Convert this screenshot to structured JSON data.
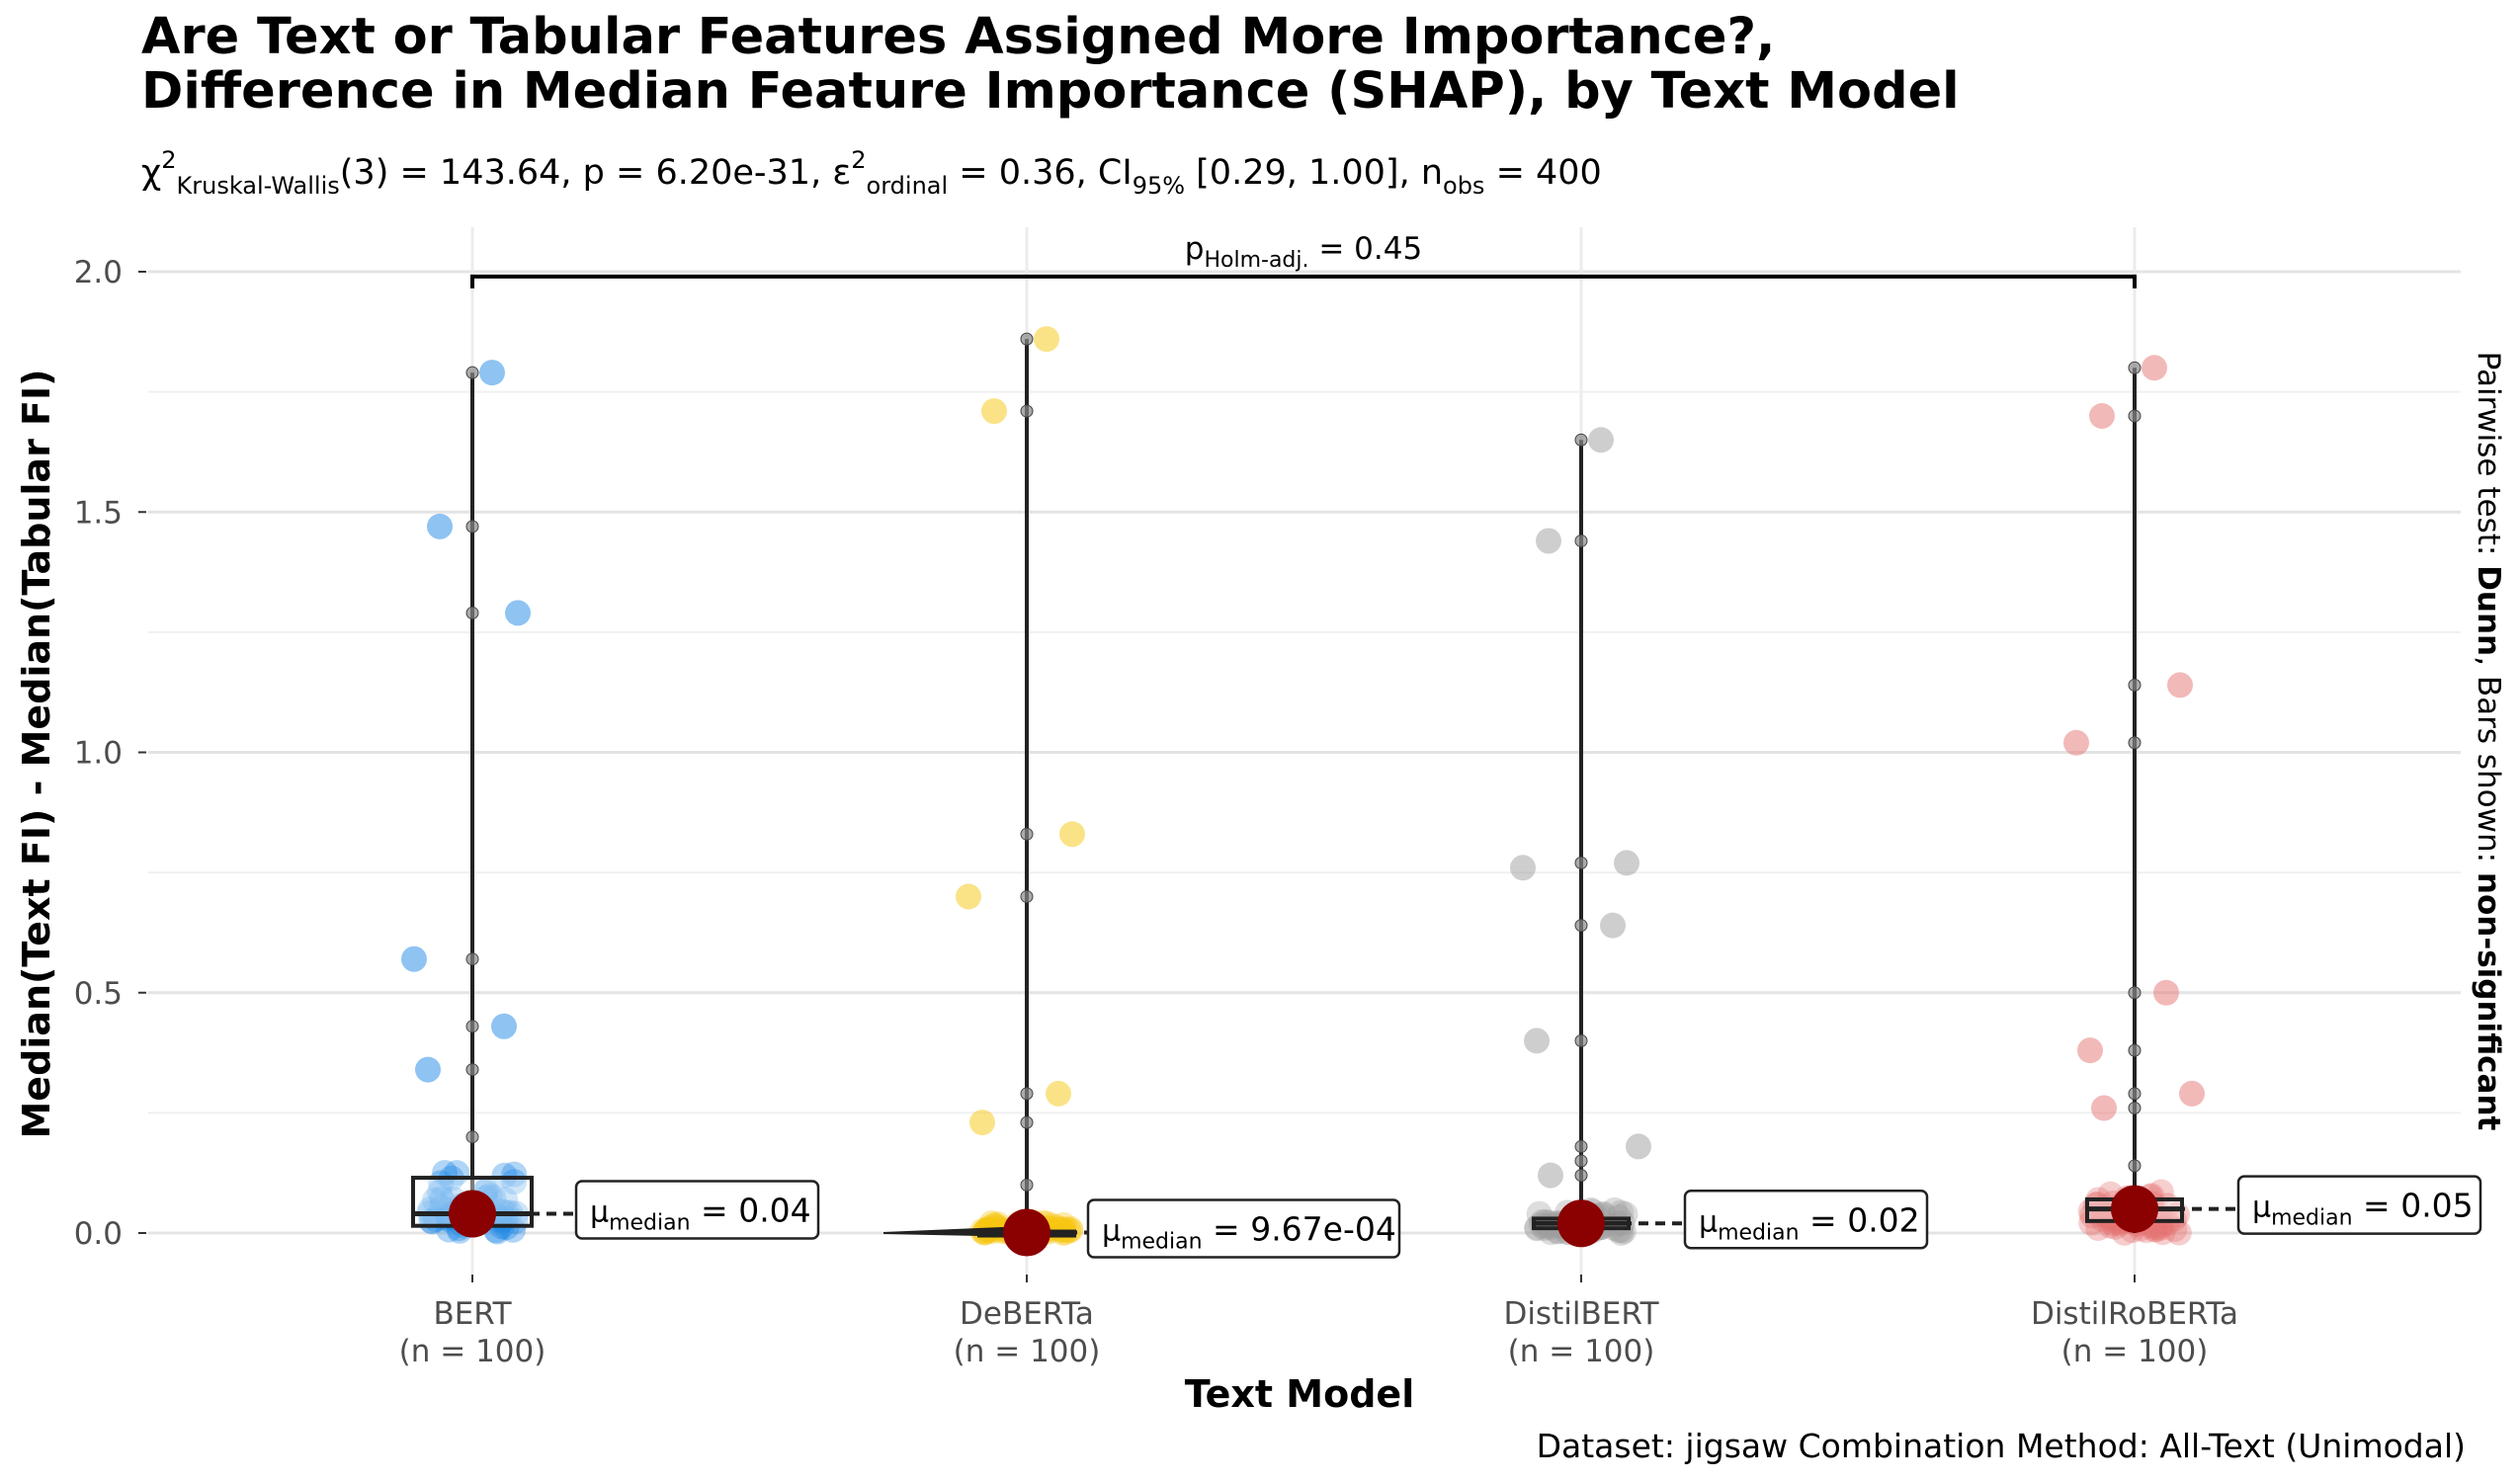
{
  "chart_data": {
    "type": "scatter",
    "title": "Are Text or Tabular Features Assigned More Importance?,",
    "subtitle": "Difference in Median Feature Importance (SHAP), by Text Model",
    "stats": {
      "chi_symbol": "χ",
      "chi_sup": "2",
      "chi_sub": "Kruskal-Wallis",
      "chi_value": "(3) = 143.64, p = 6.20e-31, ",
      "eps_symbol": "ε",
      "eps_sup": "2",
      "eps_sub": "ordinal",
      "eps_value": " = 0.36, CI",
      "ci_sub": "95%",
      "ci_value": " [0.29, 1.00], n",
      "n_sub": "obs",
      "n_value": " = 400"
    },
    "xlabel": "Text Model",
    "ylabel": "Median(Text FI) - Median(Tabular FI)",
    "ylim": [
      0,
      2
    ],
    "yticks": [
      "0.0",
      "0.5",
      "1.0",
      "1.5",
      "2.0"
    ],
    "categories": [
      "BERT",
      "DeBERTa",
      "DistilBERT",
      "DistilRoBERTa"
    ],
    "category_counts": [
      "(n = 100)",
      "(n = 100)",
      "(n = 100)",
      "(n = 100)"
    ],
    "series": [
      {
        "name": "BERT",
        "color": "#1E88E5",
        "median": 0.04,
        "q1": 0.015,
        "q3": 0.115,
        "median_label_sub": "median",
        "median_label_value": " = 0.04",
        "outliers": [
          1.79,
          1.47,
          1.29,
          0.57,
          0.43,
          0.34,
          0.2
        ],
        "jitter_points": [
          1.79,
          1.47,
          1.29,
          0.57,
          0.43,
          0.34
        ]
      },
      {
        "name": "DeBERTa",
        "color": "#F5C710",
        "median": 0.000967,
        "q1": 0.0,
        "q3": 0.003,
        "median_label_sub": "median",
        "median_label_value": " = 9.67e-04",
        "outliers": [
          1.86,
          1.71,
          0.83,
          0.7,
          0.29,
          0.23,
          0.1
        ],
        "jitter_points": [
          1.86,
          1.71,
          0.83,
          0.7,
          0.29,
          0.23
        ]
      },
      {
        "name": "DistilBERT",
        "color": "#9E9E9E",
        "median": 0.02,
        "q1": 0.01,
        "q3": 0.03,
        "median_label_sub": "median",
        "median_label_value": " = 0.02",
        "outliers": [
          1.65,
          1.44,
          0.77,
          0.64,
          0.4,
          0.18,
          0.15,
          0.12
        ],
        "jitter_points": [
          1.65,
          1.44,
          0.77,
          0.76,
          0.64,
          0.4,
          0.18,
          0.12
        ]
      },
      {
        "name": "DistilRoBERTa",
        "color": "#E57373",
        "median": 0.05,
        "q1": 0.025,
        "q3": 0.07,
        "median_label_sub": "median",
        "median_label_value": " = 0.05",
        "outliers": [
          1.8,
          1.7,
          1.14,
          1.02,
          0.5,
          0.38,
          0.29,
          0.26,
          0.14
        ],
        "jitter_points": [
          1.8,
          1.7,
          1.14,
          1.02,
          0.5,
          0.38,
          0.29,
          0.26
        ]
      }
    ],
    "pairwise": {
      "label_prefix": "p",
      "label_sub": "Holm-adj.",
      "label_value": " = 0.45",
      "from": "BERT",
      "to": "DistilRoBERTa",
      "y": 1.99
    },
    "right_label": {
      "prefix": "Pairwise test: ",
      "test": "Dunn",
      "middle": ", Bars shown: ",
      "shown": "non-significant"
    },
    "median_marker_color": "#8B0000",
    "grid": true
  },
  "caption": "Dataset:  jigsaw Combination Method:  All-Text (Unimodal)"
}
